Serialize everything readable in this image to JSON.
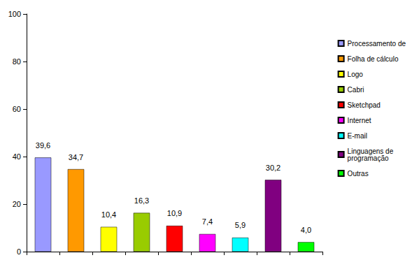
{
  "chart_data": {
    "type": "bar",
    "categories": [
      "Processamento de",
      "Folha de cálculo",
      "Logo",
      "Cabri",
      "Sketchpad",
      "Internet",
      "E-mail",
      "Linguagens de\nprogramação",
      "Outras"
    ],
    "values": [
      39.6,
      34.7,
      10.4,
      16.3,
      10.9,
      7.4,
      5.9,
      30.2,
      4.0
    ],
    "value_labels": [
      "39,6",
      "34,7",
      "10,4",
      "16,3",
      "10,9",
      "7,4",
      "5,9",
      "30,2",
      "4,0"
    ],
    "colors": [
      "#9999ff",
      "#ff9900",
      "#ffff00",
      "#99cc00",
      "#ff0000",
      "#ff00ff",
      "#00ffff",
      "#800080",
      "#00ff00"
    ],
    "ylim": [
      0,
      100
    ],
    "yticks": [
      0,
      20,
      40,
      60,
      80,
      100
    ],
    "grid": false,
    "legend": "right",
    "data_labels": true,
    "tick_labels": "y"
  }
}
